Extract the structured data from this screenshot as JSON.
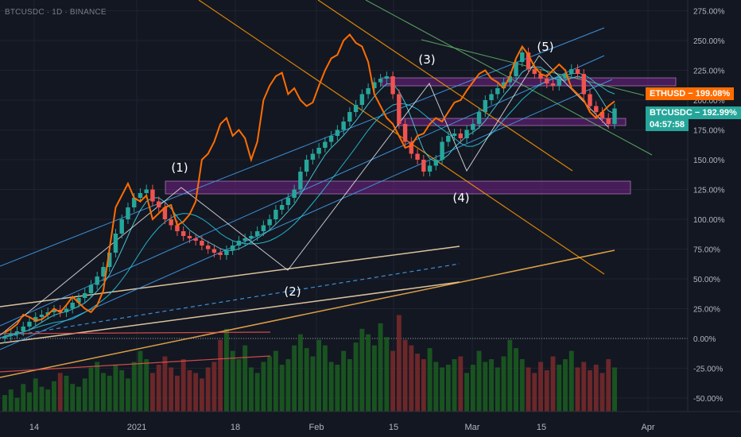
{
  "symbol": "BTCUSDC · 1D · BINANCE",
  "price_tags": {
    "eth_label": "ETHUSD",
    "eth_value": "199.08%",
    "btc_label": "BTCUSDC",
    "btc_value": "192.99%",
    "countdown": "04:57:58"
  },
  "colors": {
    "background": "#131722",
    "up": "#26a69a",
    "down": "#ef5350",
    "eth_line": "#ff6d00",
    "zone": "#9c27b0"
  },
  "chart_data": {
    "type": "candlestick",
    "y_axis": {
      "unit": "%",
      "ticks": [
        "275.00%",
        "250.00%",
        "225.00%",
        "200.00%",
        "175.00%",
        "150.00%",
        "125.00%",
        "100.00%",
        "75.00%",
        "50.00%",
        "25.00%",
        "0.00%",
        "-25.00%",
        "-50.00%"
      ]
    },
    "x_axis": {
      "ticks": [
        "14",
        "2021",
        "18",
        "Feb",
        "15",
        "Mar",
        "15",
        "Apr"
      ]
    },
    "wave_labels": [
      "(1)",
      "(2)",
      "(3)",
      "(4)",
      "(5)"
    ],
    "series": [
      {
        "name": "BTCUSDC",
        "kind": "candles",
        "close_pct": [
          2,
          4,
          6,
          10,
          14,
          18,
          20,
          22,
          24,
          22,
          25,
          30,
          34,
          38,
          45,
          52,
          60,
          72,
          88,
          100,
          110,
          118,
          122,
          125,
          115,
          110,
          100,
          95,
          90,
          86,
          84,
          82,
          78,
          75,
          72,
          70,
          74,
          78,
          82,
          84,
          86,
          90,
          95,
          100,
          108,
          112,
          118,
          125,
          140,
          150,
          155,
          160,
          165,
          170,
          175,
          182,
          190,
          196,
          205,
          210,
          215,
          218,
          220,
          205,
          180,
          165,
          155,
          150,
          140,
          145,
          150,
          165,
          170,
          172,
          168,
          175,
          180,
          190,
          200,
          205,
          210,
          215,
          220,
          232,
          240,
          226,
          222,
          218,
          214,
          212,
          218,
          222,
          226,
          222,
          205,
          195,
          190,
          185,
          180,
          193
        ]
      },
      {
        "name": "ETHUSD",
        "kind": "line",
        "close_pct": [
          5,
          8,
          12,
          20,
          18,
          15,
          16,
          20,
          25,
          22,
          28,
          35,
          30,
          25,
          22,
          28,
          40,
          75,
          110,
          120,
          130,
          118,
          115,
          120,
          100,
          105,
          110,
          112,
          95,
          98,
          104,
          115,
          150,
          155,
          165,
          180,
          185,
          170,
          175,
          168,
          150,
          165,
          200,
          212,
          220,
          223,
          205,
          210,
          200,
          195,
          198,
          212,
          225,
          235,
          238,
          250,
          255,
          248,
          245,
          232,
          205,
          195,
          185,
          180,
          170,
          160,
          162,
          170,
          172,
          180,
          185,
          182,
          190,
          198,
          200,
          208,
          215,
          222,
          225,
          218,
          215,
          210,
          220,
          235,
          245,
          238,
          228,
          222,
          220,
          225,
          230,
          225,
          210,
          205,
          200,
          190,
          185,
          190,
          195,
          199
        ]
      },
      {
        "name": "Volume",
        "kind": "bars",
        "values": [
          30,
          40,
          25,
          50,
          35,
          60,
          45,
          40,
          55,
          70,
          65,
          50,
          45,
          60,
          80,
          90,
          70,
          65,
          85,
          75,
          60,
          90,
          110,
          95,
          70,
          85,
          100,
          80,
          65,
          95,
          75,
          70,
          60,
          80,
          90,
          130,
          150,
          110,
          95,
          120,
          80,
          70,
          90,
          100,
          110,
          85,
          95,
          120,
          140,
          115,
          100,
          130,
          120,
          90,
          85,
          110,
          95,
          125,
          150,
          140,
          120,
          160,
          135,
          110,
          175,
          130,
          120,
          105,
          95,
          115,
          90,
          80,
          85,
          95,
          100,
          70,
          85,
          110,
          90,
          95,
          80,
          100,
          130,
          115,
          95,
          80,
          70,
          90,
          75,
          100,
          85,
          95,
          110,
          80,
          90,
          75,
          85,
          70,
          95,
          80
        ]
      }
    ]
  }
}
